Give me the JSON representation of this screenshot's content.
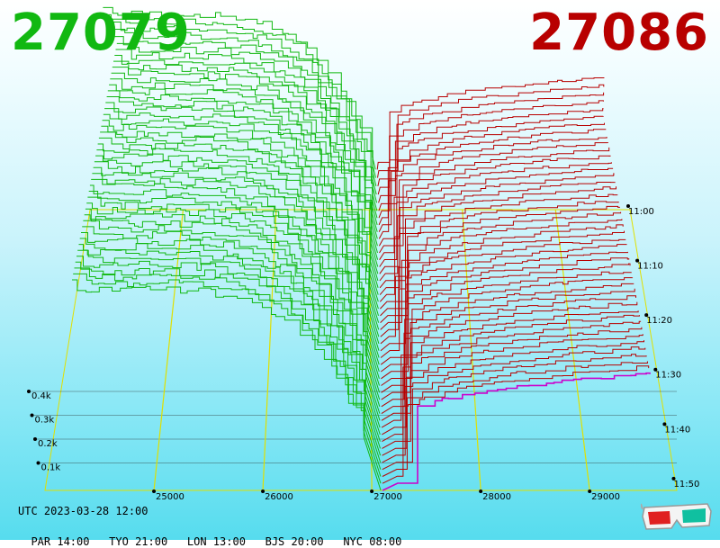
{
  "header": {
    "bid_price": "27079",
    "ask_price": "27086"
  },
  "footer": {
    "utc": "UTC 2023-03-28 12:00",
    "zones": [
      {
        "label": "PAR 14:00"
      },
      {
        "label": "TYO 21:00"
      },
      {
        "label": "LON 13:00"
      },
      {
        "label": "BJS 20:00"
      },
      {
        "label": "NYC 08:00"
      }
    ]
  },
  "icons": {
    "glasses": "3d-glasses-icon"
  },
  "colors": {
    "bid": "#11b811",
    "ask": "#b80000",
    "grid": "#e0e000",
    "latest_ask": "#cc00cc"
  },
  "chart_data": {
    "type": "area",
    "x_ticks": [
      25000,
      26000,
      27000,
      28000,
      29000
    ],
    "x_range": [
      24000,
      29800
    ],
    "z_ticks": [
      "0.1k",
      "0.2k",
      "0.3k",
      "0.4k"
    ],
    "z_tick_values": [
      100,
      200,
      300,
      400
    ],
    "time_ticks": [
      "11:00",
      "11:10",
      "11:20",
      "11:30",
      "11:40",
      "11:50"
    ],
    "bid_price": 27079,
    "ask_price": 27086
  }
}
